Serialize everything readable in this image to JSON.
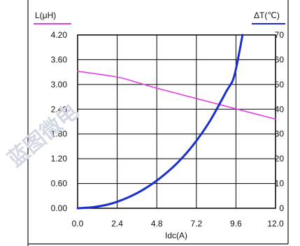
{
  "watermark": "蓝图微电",
  "chart_data": {
    "type": "line",
    "x_axis": {
      "label": "Idc(A)",
      "range": [
        0,
        12
      ],
      "ticks": [
        "0.0",
        "2.4",
        "4.8",
        "7.2",
        "9.6",
        "12.0"
      ]
    },
    "y_left": {
      "label": "L(μH)",
      "range": [
        0,
        4.2
      ],
      "ticks": [
        "0.00",
        "0.60",
        "1.20",
        "1.80",
        "2.40",
        "3.00",
        "3.60",
        "4.20"
      ],
      "label_underline_color": "#e040e0"
    },
    "y_right": {
      "label": "ΔT(℃)",
      "range": [
        0,
        70
      ],
      "ticks": [
        "0",
        "10",
        "20",
        "30",
        "40",
        "50",
        "60",
        "70"
      ],
      "label_underline_color": "#1a2fd0"
    },
    "grid": true,
    "series": [
      {
        "axis": "left",
        "color": "#e040e0",
        "x": [
          0,
          2.4,
          3.6,
          4.8,
          7.2,
          9.6,
          12.0
        ],
        "y": [
          3.32,
          3.18,
          3.05,
          2.91,
          2.66,
          2.41,
          2.16
        ]
      },
      {
        "axis": "right",
        "color": "#1a2fd0",
        "x": [
          0,
          1.0,
          2.0,
          3.0,
          4.0,
          5.0,
          6.0,
          7.0,
          8.0,
          9.0,
          9.5,
          10.0
        ],
        "y": [
          0,
          0.5,
          1.8,
          4.2,
          7.6,
          12.2,
          18.0,
          25.5,
          35.0,
          47.0,
          53.5,
          70.0
        ]
      }
    ]
  }
}
